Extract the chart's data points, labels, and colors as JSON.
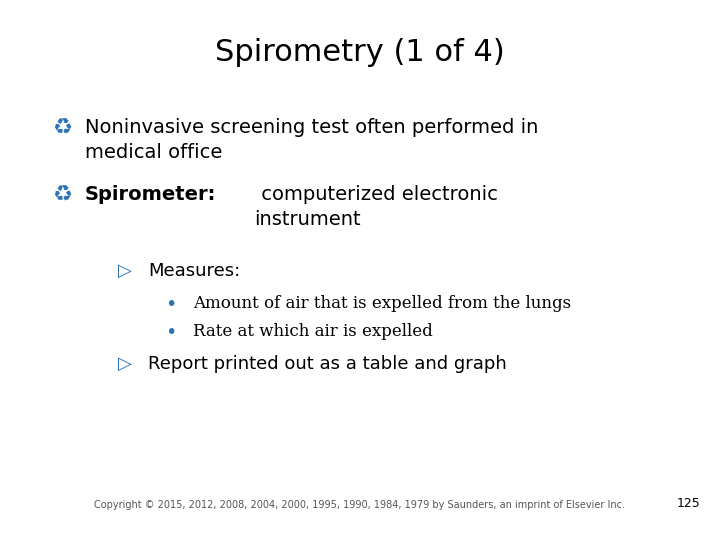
{
  "title": "Spirometry (1 of 4)",
  "title_fontsize": 22,
  "title_color": "#000000",
  "background_color": "#ffffff",
  "bullet_color": "#2E74B5",
  "text_color": "#000000",
  "bullet_symbol": "♻",
  "arrow_symbol": "▷",
  "dot_symbol": "•",
  "bullet1_text": "Noninvasive screening test often performed in\nmedical office",
  "bullet2_bold": "Spirometer:",
  "bullet2_normal": " computerized electronic\ninstrument",
  "sub1_label": "Measures:",
  "sub1_items": [
    "Amount of air that is expelled from the lungs",
    "Rate at which air is expelled"
  ],
  "sub2_text": "Report printed out as a table and graph",
  "copyright": "Copyright © 2015, 2012, 2008, 2004, 2000, 1995, 1990, 1984, 1979 by Saunders, an imprint of Elsevier Inc.",
  "page_number": "125",
  "main_fs": 14,
  "sub_fs": 13,
  "sub_sub_fs": 12,
  "copyright_fs": 7
}
